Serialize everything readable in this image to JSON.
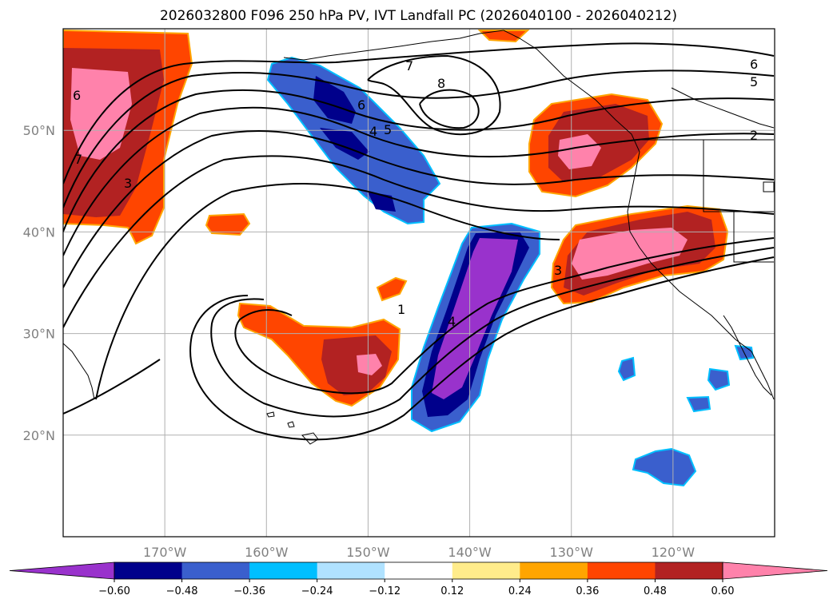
{
  "title": "2026032800 F096 250 hPa PV, IVT Landfall PC (2026040100 - 2026040212)",
  "map": {
    "lon_range": [
      -180,
      -110
    ],
    "lat_range": [
      10,
      60
    ],
    "lon_ticks": [
      {
        "lon": -170,
        "label": "170°W"
      },
      {
        "lon": -160,
        "label": "160°W"
      },
      {
        "lon": -150,
        "label": "150°W"
      },
      {
        "lon": -140,
        "label": "140°W"
      },
      {
        "lon": -130,
        "label": "130°W"
      },
      {
        "lon": -120,
        "label": "120°W"
      }
    ],
    "lat_ticks": [
      {
        "lat": 20,
        "label": "20°N"
      },
      {
        "lat": 30,
        "label": "30°N"
      },
      {
        "lat": 40,
        "label": "40°N"
      },
      {
        "lat": 50,
        "label": "50°N"
      }
    ],
    "gridlines": true
  },
  "contour_labels": [
    "1",
    "2",
    "3",
    "4",
    "5",
    "6",
    "7",
    "8"
  ],
  "colorbar": {
    "colors": [
      "#9932cc",
      "#00008b",
      "#3a5fcd",
      "#00bfff",
      "#b0e2ff",
      "#ffffff",
      "#ffec8b",
      "#ffa500",
      "#ff4500",
      "#b22222",
      "#ff82ab"
    ],
    "labels": [
      "−0.60",
      "−0.48",
      "−0.36",
      "−0.24",
      "−0.12",
      "0.12",
      "0.24",
      "0.36",
      "0.48",
      "0.60"
    ]
  }
}
